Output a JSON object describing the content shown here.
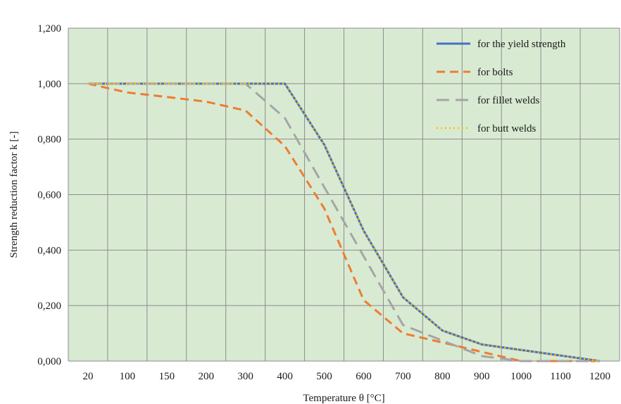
{
  "chart_data": {
    "type": "line",
    "title": "",
    "xlabel": "Temperature θ [°C]",
    "ylabel": "Strength reduction factor k [-]",
    "categories": [
      "20",
      "100",
      "150",
      "200",
      "300",
      "400",
      "500",
      "600",
      "700",
      "800",
      "900",
      "1000",
      "1100",
      "1200"
    ],
    "x": [
      20,
      100,
      150,
      200,
      300,
      400,
      500,
      600,
      700,
      800,
      900,
      1000,
      1100,
      1200
    ],
    "y_ticks": [
      "0,000",
      "0,200",
      "0,400",
      "0,600",
      "0,800",
      "1,000",
      "1,200"
    ],
    "ylim": [
      0,
      1.2
    ],
    "grid": true,
    "background_color": "#d9ead3",
    "legend_position": "top-right",
    "series": [
      {
        "name": "for the yield strength",
        "color": "#4472c4",
        "style": "solid",
        "values": [
          1.0,
          1.0,
          1.0,
          1.0,
          1.0,
          1.0,
          0.78,
          0.47,
          0.23,
          0.11,
          0.06,
          0.04,
          0.02,
          0.0
        ]
      },
      {
        "name": "for bolts",
        "color": "#ed7d31",
        "style": "dashed",
        "values": [
          1.0,
          0.968,
          0.952,
          0.935,
          0.903,
          0.775,
          0.55,
          0.22,
          0.1,
          0.067,
          0.033,
          0.0,
          0.0,
          0.0
        ]
      },
      {
        "name": "for fillet welds",
        "color": "#a5a5a5",
        "style": "long-dashed",
        "values": [
          1.0,
          1.0,
          1.0,
          1.0,
          1.0,
          0.876,
          0.627,
          0.378,
          0.13,
          0.074,
          0.018,
          0.0,
          0.0,
          0.0
        ]
      },
      {
        "name": "for butt welds",
        "color": "#ffc000",
        "style": "dotted",
        "values": [
          1.0,
          1.0,
          1.0,
          1.0,
          1.0,
          1.0,
          0.78,
          0.47,
          0.23,
          0.11,
          0.06,
          0.04,
          0.02,
          0.0
        ]
      }
    ]
  }
}
